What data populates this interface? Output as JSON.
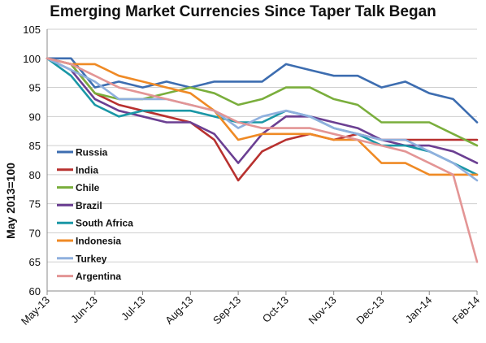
{
  "chart_data": {
    "type": "line",
    "title": "Emerging Market Currencies Since Taper Talk Began",
    "ylabel": "May 2013=100",
    "xlabel": "",
    "ylim": [
      60,
      105
    ],
    "yticks": [
      60,
      65,
      70,
      75,
      80,
      85,
      90,
      95,
      100,
      105
    ],
    "x_tick_labels": [
      "May-13",
      "Jun-13",
      "Jul-13",
      "Aug-13",
      "Sep-13",
      "Oct-13",
      "Nov-13",
      "Dec-13",
      "Jan-14",
      "Feb-14"
    ],
    "grid": "horizontal",
    "legend_position": "left",
    "x": [
      "May-13",
      "mid May-13",
      "Jun-13",
      "mid Jun-13",
      "Jul-13",
      "mid Jul-13",
      "Aug-13",
      "mid Aug-13",
      "Sep-13",
      "mid Sep-13",
      "Oct-13",
      "mid Oct-13",
      "Nov-13",
      "mid Nov-13",
      "Dec-13",
      "mid Dec-13",
      "Jan-14",
      "mid Jan-14",
      "Feb-14"
    ],
    "series": [
      {
        "name": "Russia",
        "color": "#3d6db0",
        "values": [
          100,
          100,
          95,
          96,
          95,
          96,
          95,
          96,
          96,
          96,
          99,
          98,
          97,
          97,
          95,
          96,
          94,
          93,
          89
        ]
      },
      {
        "name": "India",
        "color": "#b8312f",
        "values": [
          100,
          99,
          94,
          92,
          91,
          90,
          89,
          86,
          79,
          84,
          86,
          87,
          86,
          87,
          86,
          86,
          86,
          86,
          86
        ]
      },
      {
        "name": "Chile",
        "color": "#7aae3c",
        "values": [
          100,
          99,
          94,
          93,
          93,
          94,
          95,
          94,
          92,
          93,
          95,
          95,
          93,
          92,
          89,
          89,
          89,
          87,
          85
        ]
      },
      {
        "name": "Brazil",
        "color": "#6b3f92",
        "values": [
          100,
          98,
          93,
          91,
          90,
          89,
          89,
          87,
          82,
          87,
          90,
          90,
          89,
          88,
          86,
          85,
          85,
          84,
          82
        ]
      },
      {
        "name": "South Africa",
        "color": "#1a97a6",
        "values": [
          100,
          97,
          92,
          90,
          91,
          91,
          91,
          90,
          89,
          89,
          91,
          90,
          88,
          87,
          85,
          85,
          84,
          82,
          80
        ]
      },
      {
        "name": "Indonesia",
        "color": "#ef8a25",
        "values": [
          100,
          99,
          99,
          97,
          96,
          95,
          94,
          91,
          86,
          87,
          87,
          87,
          86,
          86,
          82,
          82,
          80,
          80,
          80
        ]
      },
      {
        "name": "Turkey",
        "color": "#8fb0de",
        "values": [
          100,
          98,
          96,
          93,
          93,
          93,
          92,
          91,
          88,
          90,
          91,
          90,
          88,
          87,
          86,
          86,
          84,
          82,
          79
        ]
      },
      {
        "name": "Argentina",
        "color": "#e39595",
        "values": [
          100,
          99,
          97,
          95,
          94,
          93,
          92,
          91,
          89,
          88,
          88,
          88,
          87,
          86,
          85,
          84,
          82,
          80,
          65
        ]
      }
    ]
  }
}
